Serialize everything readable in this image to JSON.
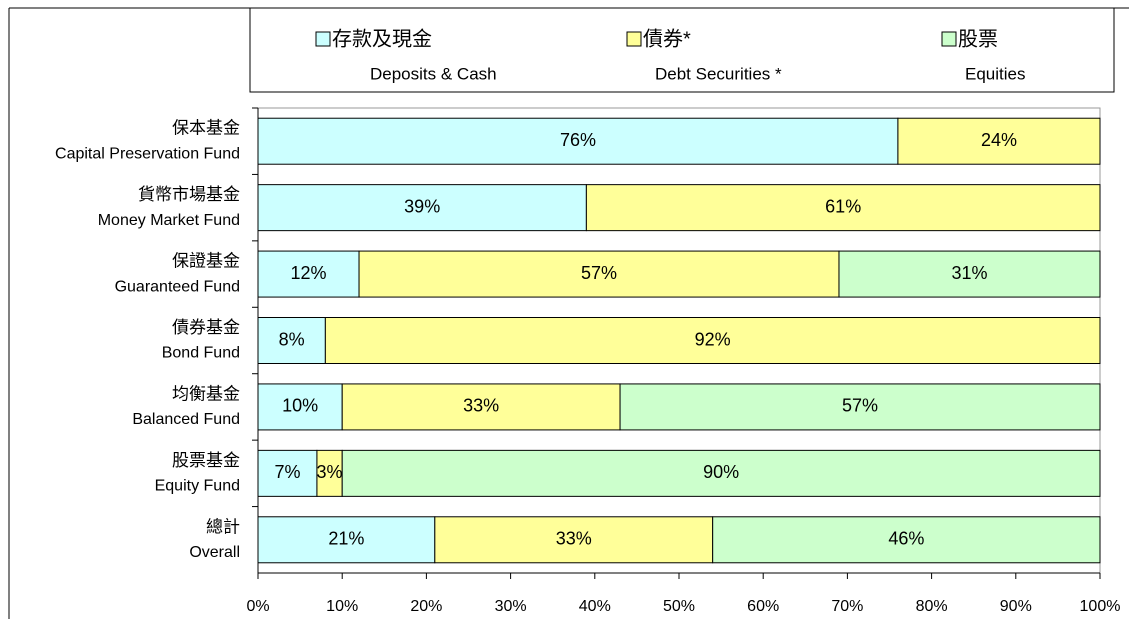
{
  "chart_data": {
    "type": "stacked-bar-horizontal",
    "categories": [
      [
        "保本基金",
        "Capital Preservation Fund"
      ],
      [
        "貨幣市場基金",
        "Money Market Fund"
      ],
      [
        "保證基金",
        "Guaranteed Fund"
      ],
      [
        "債券基金",
        "Bond Fund"
      ],
      [
        "均衡基金",
        "Balanced Fund"
      ],
      [
        "股票基金",
        "Equity Fund"
      ],
      [
        "總計",
        "Overall"
      ]
    ],
    "series": [
      {
        "name": [
          "存款及現金",
          "Deposits & Cash"
        ],
        "color": "#ccffff",
        "values": [
          76,
          39,
          12,
          8,
          10,
          7,
          21
        ],
        "value_labels": [
          "76%",
          "39%",
          "12%",
          "8%",
          "10%",
          "7%",
          "21%"
        ]
      },
      {
        "name": [
          "債券*",
          "Debt Securities *"
        ],
        "color": "#ffff99",
        "values": [
          24,
          61,
          57,
          92,
          33,
          3,
          33
        ],
        "value_labels": [
          "24%",
          "61%",
          "57%",
          "92%",
          "33%",
          "3%",
          "33%"
        ]
      },
      {
        "name": [
          "股票",
          "Equities"
        ],
        "color": "#ccffcc",
        "values": [
          null,
          null,
          31,
          null,
          57,
          90,
          46
        ],
        "value_labels": [
          null,
          null,
          "31%",
          null,
          "57%",
          "90%",
          "46%"
        ]
      }
    ],
    "xlim": [
      0,
      100
    ],
    "xticks": [
      {
        "value": 0,
        "label": "0%"
      },
      {
        "value": 10,
        "label": "10%"
      },
      {
        "value": 20,
        "label": "20%"
      },
      {
        "value": 30,
        "label": "30%"
      },
      {
        "value": 40,
        "label": "40%"
      },
      {
        "value": 50,
        "label": "50%"
      },
      {
        "value": 60,
        "label": "60%"
      },
      {
        "value": 70,
        "label": "70%"
      },
      {
        "value": 80,
        "label": "80%"
      },
      {
        "value": 90,
        "label": "90%"
      },
      {
        "value": 100,
        "label": "100%"
      }
    ]
  }
}
